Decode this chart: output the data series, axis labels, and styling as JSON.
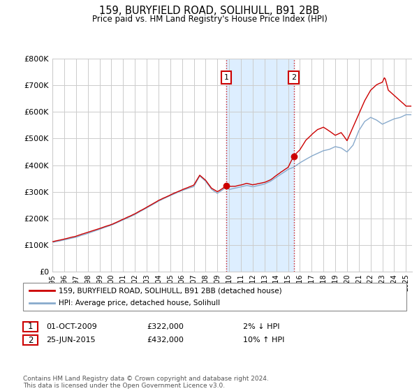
{
  "title": "159, BURYFIELD ROAD, SOLIHULL, B91 2BB",
  "subtitle": "Price paid vs. HM Land Registry's House Price Index (HPI)",
  "ylim": [
    0,
    800000
  ],
  "yticks": [
    0,
    100000,
    200000,
    300000,
    400000,
    500000,
    600000,
    700000,
    800000
  ],
  "ytick_labels": [
    "£0",
    "£100K",
    "£200K",
    "£300K",
    "£400K",
    "£500K",
    "£600K",
    "£700K",
    "£800K"
  ],
  "sale1_date": 2009.75,
  "sale1_price": 322000,
  "sale1_text": "01-OCT-2009",
  "sale1_amount": "£322,000",
  "sale1_hpi": "2% ↓ HPI",
  "sale2_date": 2015.48,
  "sale2_price": 432000,
  "sale2_text": "25-JUN-2015",
  "sale2_amount": "£432,000",
  "sale2_hpi": "10% ↑ HPI",
  "line1_color": "#cc0000",
  "line2_color": "#88aacc",
  "shade_color": "#ddeeff",
  "grid_color": "#cccccc",
  "background_color": "#ffffff",
  "legend_line1": "159, BURYFIELD ROAD, SOLIHULL, B91 2BB (detached house)",
  "legend_line2": "HPI: Average price, detached house, Solihull",
  "footer": "Contains HM Land Registry data © Crown copyright and database right 2024.\nThis data is licensed under the Open Government Licence v3.0.",
  "marker_color": "#cc0000",
  "xmin": 1995,
  "xmax": 2025.5
}
